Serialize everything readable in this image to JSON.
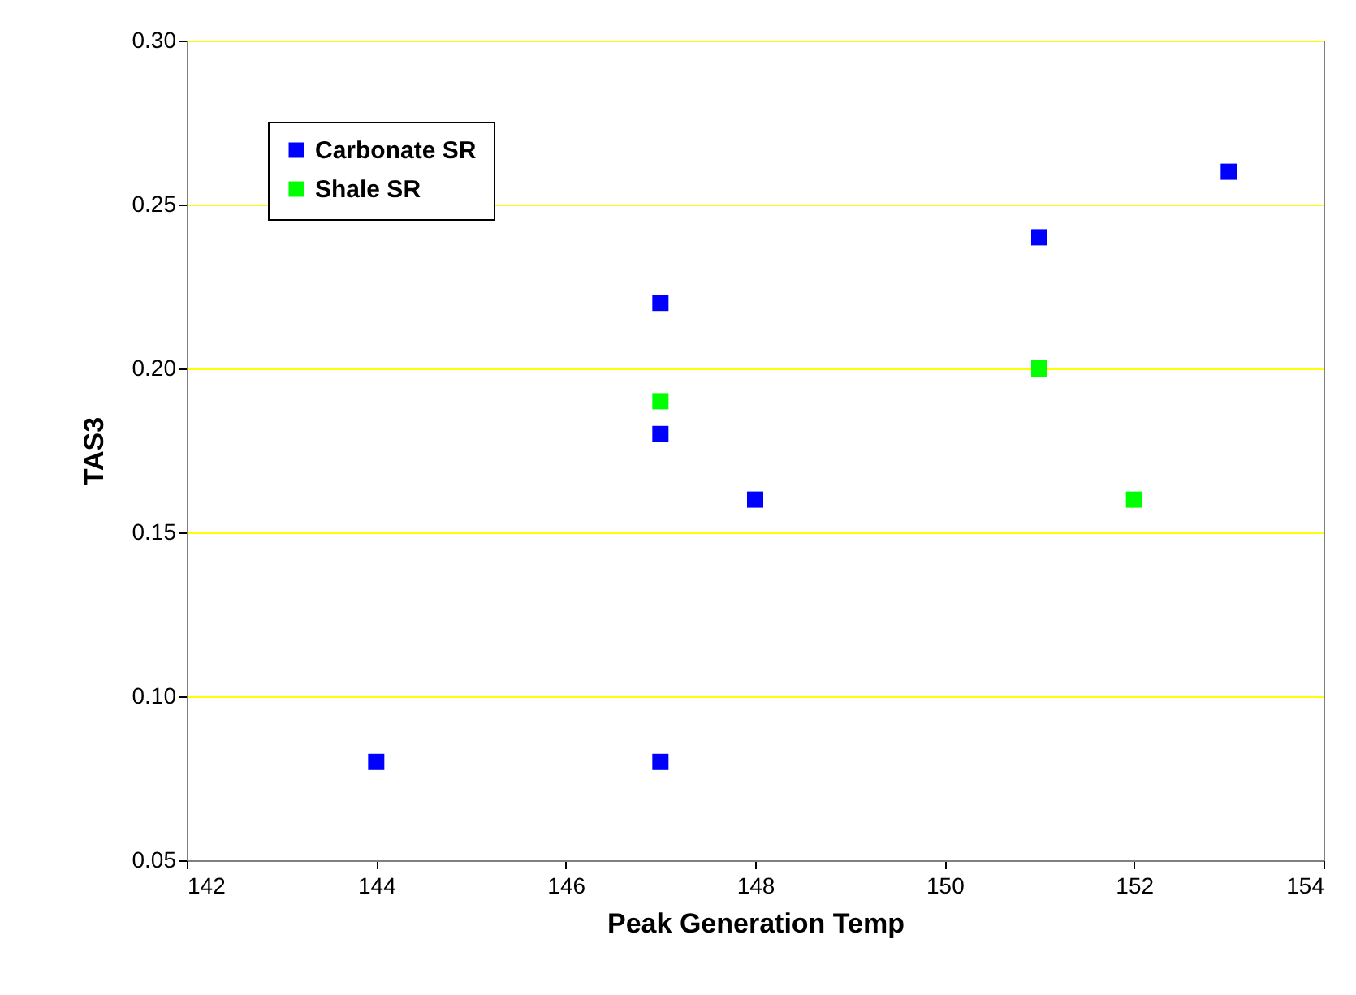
{
  "chart_data": {
    "type": "scatter",
    "xlabel": "Peak Generation Temp",
    "ylabel": "TAS3",
    "xlim": [
      142,
      154
    ],
    "xticks": [
      142,
      144,
      146,
      148,
      150,
      152,
      154
    ],
    "ylim": [
      0.05,
      0.3
    ],
    "yticks": [
      {
        "value": 0.05,
        "label": "0.05"
      },
      {
        "value": 0.1,
        "label": "0.10"
      },
      {
        "value": 0.15,
        "label": "0.15"
      },
      {
        "value": 0.2,
        "label": "0.20"
      },
      {
        "value": 0.25,
        "label": "0.25"
      },
      {
        "value": 0.3,
        "label": "0.30"
      }
    ],
    "grid": "y",
    "legend": "top left",
    "marker": "square",
    "series": [
      {
        "name": "Carbonate SR",
        "color": "#0000ff",
        "x": [
          144,
          147,
          147,
          147,
          148,
          151,
          153
        ],
        "values": [
          0.08,
          0.08,
          0.18,
          0.22,
          0.16,
          0.24,
          0.26
        ]
      },
      {
        "name": "Shale SR",
        "color": "#00ff00",
        "x": [
          147,
          151,
          152
        ],
        "values": [
          0.19,
          0.2,
          0.16
        ]
      }
    ]
  }
}
